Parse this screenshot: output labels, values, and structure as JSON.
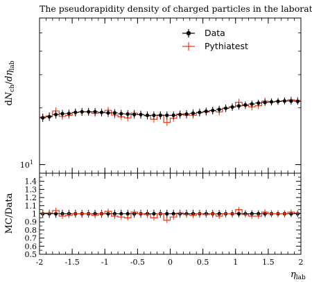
{
  "chart_data": {
    "type": "line",
    "title": "The pseudorapidity density of charged particles in the laboratory frame",
    "xlabel": "η",
    "xlabel_sub": "lab",
    "ylabel_main": "dN",
    "ylabel_main_parts": [
      "d",
      "N",
      "ch",
      "/",
      "dη",
      "lab"
    ],
    "ylabel_ratio": "MC/Data",
    "xlim": [
      -2,
      2
    ],
    "ylim_main": [
      9,
      60
    ],
    "ylog_main": true,
    "ylim_ratio": [
      0.5,
      1.5
    ],
    "xticks": [
      -2,
      -1.5,
      -1,
      -0.5,
      0,
      0.5,
      1,
      1.5,
      2
    ],
    "xtick_labels": [
      "-2",
      "-1.5",
      "-1",
      "-0.5",
      "0",
      "0.5",
      "1",
      "1.5",
      "2"
    ],
    "ytick_main_labels": [
      {
        "base": "10",
        "exp": "1",
        "value": 10
      }
    ],
    "ytick_ratio_labels": [
      "0.5",
      "0.6",
      "0.7",
      "0.8",
      "0.9",
      "1",
      "1.1",
      "1.2",
      "1.3",
      "1.4"
    ],
    "ytick_ratio_values": [
      0.5,
      0.6,
      0.7,
      0.8,
      0.9,
      1.0,
      1.1,
      1.2,
      1.3,
      1.4
    ],
    "legend_placement": "top-right",
    "grid": false,
    "bin_edges": [
      -2.0,
      -1.9,
      -1.8,
      -1.7,
      -1.6,
      -1.5,
      -1.4,
      -1.3,
      -1.2,
      -1.1,
      -1.0,
      -0.9,
      -0.8,
      -0.7,
      -0.6,
      -0.5,
      -0.4,
      -0.3,
      -0.2,
      -0.1,
      0.0,
      0.1,
      0.2,
      0.3,
      0.4,
      0.5,
      0.6,
      0.7,
      0.8,
      0.9,
      1.0,
      1.1,
      1.2,
      1.3,
      1.4,
      1.5,
      1.6,
      1.7,
      1.8,
      1.9,
      2.0
    ],
    "series": [
      {
        "name": "Data",
        "color": "#000000",
        "style": "points-with-errors",
        "values": [
          17.73,
          17.96,
          18.44,
          18.62,
          18.68,
          18.93,
          19.07,
          19.07,
          19.07,
          18.93,
          18.82,
          18.82,
          18.62,
          18.55,
          18.44,
          18.44,
          18.27,
          18.27,
          18.27,
          18.27,
          18.27,
          18.44,
          18.55,
          18.73,
          18.93,
          19.18,
          19.38,
          19.64,
          19.92,
          20.21,
          20.48,
          20.73,
          20.98,
          21.22,
          21.4,
          21.53,
          21.67,
          21.76,
          21.76,
          21.67
        ],
        "errors": [
          0.9,
          0.9,
          0.9,
          0.9,
          0.9,
          0.9,
          0.9,
          0.9,
          0.9,
          0.9,
          0.9,
          0.9,
          0.9,
          0.9,
          0.9,
          0.9,
          0.9,
          0.9,
          0.9,
          0.9,
          0.9,
          0.9,
          0.9,
          0.9,
          0.9,
          0.9,
          0.9,
          0.9,
          0.9,
          0.9,
          0.9,
          0.9,
          0.9,
          0.9,
          0.9,
          0.9,
          0.9,
          0.9,
          0.9,
          0.9
        ]
      },
      {
        "name": "Pythiatest",
        "color": "#ee3311",
        "style": "step",
        "values": [
          17.9,
          18.17,
          19.28,
          18.03,
          18.24,
          18.89,
          19.06,
          19.04,
          18.71,
          18.86,
          19.42,
          18.32,
          17.94,
          17.69,
          18.76,
          18.44,
          18.16,
          17.39,
          18.34,
          16.74,
          17.62,
          18.55,
          18.29,
          18.29,
          18.85,
          19.01,
          19.35,
          19.03,
          19.9,
          20.23,
          21.43,
          20.56,
          20.27,
          20.56,
          21.73,
          21.49,
          21.64,
          21.81,
          22.09,
          21.94
        ],
        "ratio": [
          1.01,
          1.01,
          1.04,
          0.97,
          0.98,
          1.0,
          1.0,
          1.0,
          0.98,
          1.0,
          1.03,
          0.97,
          0.96,
          0.95,
          1.02,
          1.0,
          0.99,
          0.95,
          1.0,
          0.92,
          0.96,
          1.01,
          0.99,
          0.98,
          1.0,
          0.99,
          1.0,
          0.97,
          1.0,
          1.0,
          1.05,
          0.99,
          0.97,
          0.97,
          1.02,
          1.0,
          1.0,
          1.0,
          1.02,
          1.01
        ]
      }
    ]
  }
}
